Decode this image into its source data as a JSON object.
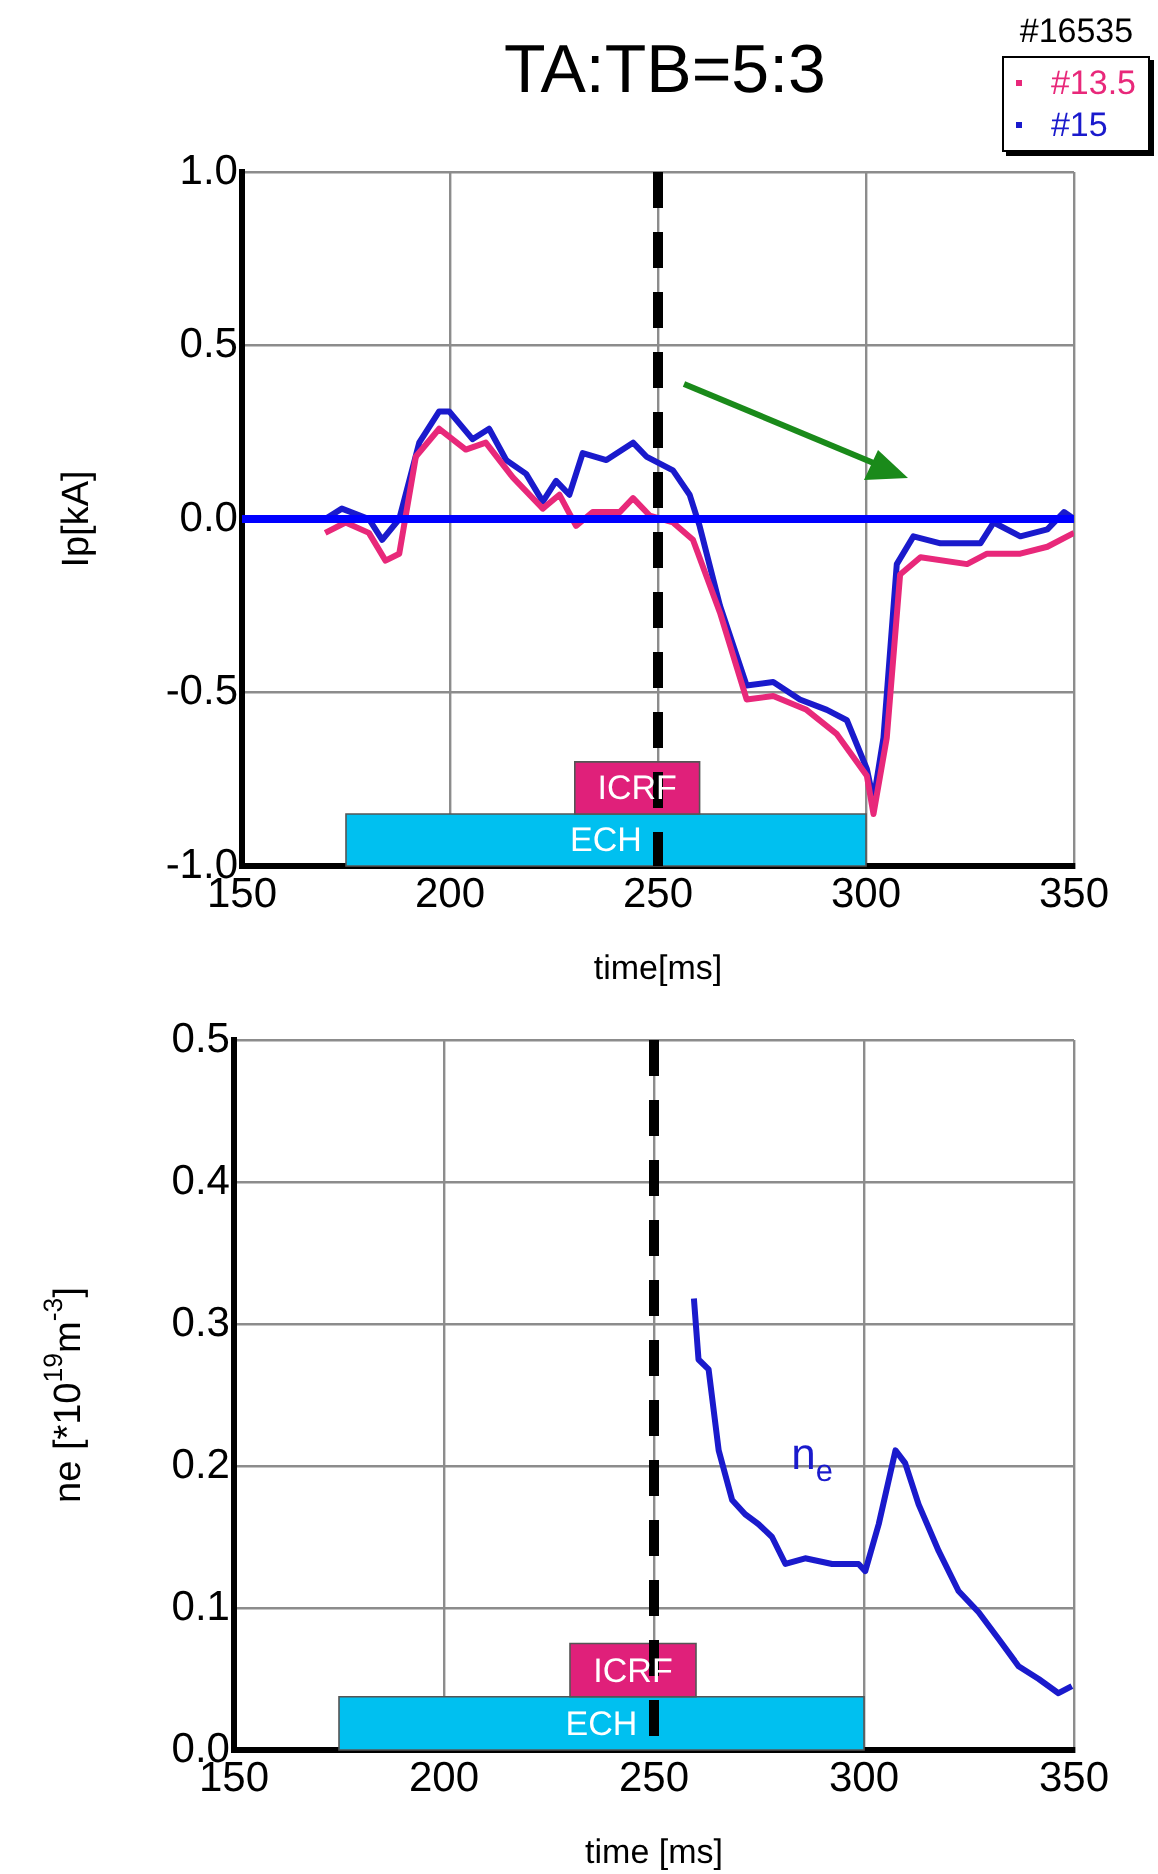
{
  "chart_data": [
    {
      "type": "line",
      "title": "TA:TB=5:3",
      "xlabel": "time[ms]",
      "ylabel": "Ip[kA]",
      "legend_title": "#16535",
      "legend": "top right",
      "marker": "none",
      "grid": true,
      "xlim": [
        150,
        350
      ],
      "xticks": [
        150,
        200,
        250,
        300,
        350
      ],
      "ylim": [
        -1.0,
        1.0
      ],
      "yticks": [
        {
          "value": -1,
          "label": "-1.0"
        },
        {
          "value": -0.5,
          "label": "-0.5"
        },
        {
          "value": 0,
          "label": "0.0"
        },
        {
          "value": 0.5,
          "label": "0.5"
        },
        {
          "value": 1,
          "label": "1.0"
        }
      ],
      "series": [
        {
          "name": "#13.5",
          "color": "#e8287a",
          "x": [
            170,
            174.9,
            180.5,
            184.5,
            187.8,
            191.8,
            197.4,
            203.8,
            208.6,
            215.1,
            222.3,
            226.3,
            230.3,
            234.3,
            240.8,
            244,
            248,
            253.6,
            258.4,
            264.9,
            271.3,
            277.7,
            285.7,
            293,
            300.2,
            301.8,
            305,
            308.2,
            313.1,
            324.3,
            329.1,
            337.1,
            343.6,
            350
          ],
          "values": [
            -0.04,
            -0.01,
            -0.04,
            -0.12,
            -0.1,
            0.18,
            0.26,
            0.2,
            0.22,
            0.12,
            0.03,
            0.07,
            -0.02,
            0.02,
            0.02,
            0.06,
            0.01,
            -0.01,
            -0.06,
            -0.27,
            -0.52,
            -0.51,
            -0.55,
            -0.62,
            -0.74,
            -0.85,
            -0.63,
            -0.16,
            -0.11,
            -0.13,
            -0.1,
            -0.1,
            -0.08,
            -0.04
          ]
        },
        {
          "name": "#15",
          "color": "#1a1acc",
          "x": [
            170,
            174,
            180.5,
            183.7,
            187.8,
            192.6,
            197.4,
            199.8,
            205.4,
            209.4,
            213.5,
            218.3,
            222.3,
            225.5,
            228.7,
            231.9,
            237.6,
            244,
            247.2,
            253.6,
            257.6,
            260,
            264.9,
            271.3,
            277.7,
            284.1,
            290.6,
            295.4,
            300.2,
            301.8,
            304.2,
            307.4,
            311.4,
            317.9,
            327.5,
            330.7,
            337.1,
            343.6,
            347.6,
            350
          ],
          "values": [
            0,
            0.03,
            0,
            -0.06,
            0,
            0.22,
            0.31,
            0.31,
            0.23,
            0.26,
            0.17,
            0.13,
            0.05,
            0.11,
            0.07,
            0.19,
            0.17,
            0.22,
            0.18,
            0.14,
            0.07,
            -0.02,
            -0.25,
            -0.48,
            -0.47,
            -0.52,
            -0.55,
            -0.58,
            -0.72,
            -0.81,
            -0.63,
            -0.13,
            -0.05,
            -0.07,
            -0.07,
            -0.01,
            -0.05,
            -0.03,
            0.02,
            0
          ]
        }
      ],
      "ref_lines": [
        {
          "axis": "y",
          "value": 0,
          "color": "#0000ff"
        },
        {
          "axis": "x",
          "value": 250,
          "color": "#000000",
          "line_style": "dashed"
        }
      ],
      "bands": [
        {
          "axis": "x",
          "from": 175,
          "to": 300,
          "label": "ECH",
          "color": "#00c0f0"
        },
        {
          "axis": "x",
          "from": 230,
          "to": 260,
          "label": "ICRF",
          "color": "#e0207a"
        }
      ]
    },
    {
      "type": "line",
      "xlabel": "time [ms]",
      "ylabel": "ne [*10$^{19}$m$^{-3}$]",
      "marker": "none",
      "grid": true,
      "xlim": [
        150,
        350
      ],
      "xticks": [
        150,
        200,
        250,
        300,
        350
      ],
      "ylim": [
        0,
        0.5
      ],
      "yticks": [
        {
          "value": 0,
          "label": "0.0"
        },
        {
          "value": 0.1,
          "label": "0.1"
        },
        {
          "value": 0.2,
          "label": "0.2"
        },
        {
          "value": 0.3,
          "label": "0.3"
        },
        {
          "value": 0.4,
          "label": "0.4"
        },
        {
          "value": 0.5,
          "label": "0.5"
        }
      ],
      "series": [
        {
          "name": "n$_{e}$",
          "color": "#1a1acc",
          "x": [
            259.5,
            260.6,
            263,
            265.4,
            268.6,
            271.7,
            274.9,
            278.1,
            281.3,
            286,
            292.4,
            298.7,
            300.3,
            303.5,
            307.5,
            309.8,
            313,
            317.8,
            322.5,
            327.3,
            332.1,
            336.8,
            341.6,
            346.3,
            349.5
          ],
          "values": [
            0.318,
            0.275,
            0.268,
            0.211,
            0.176,
            0.166,
            0.159,
            0.15,
            0.131,
            0.135,
            0.131,
            0.131,
            0.126,
            0.159,
            0.211,
            0.202,
            0.173,
            0.14,
            0.112,
            0.097,
            0.078,
            0.059,
            0.05,
            0.04,
            0.045
          ]
        }
      ],
      "ref_lines": [
        {
          "axis": "x",
          "value": 250,
          "color": "#000000",
          "line_style": "dashed"
        }
      ],
      "bands": [
        {
          "axis": "x",
          "from": 175,
          "to": 300,
          "label": "ECH",
          "color": "#00c0f0"
        },
        {
          "axis": "x",
          "from": 230,
          "to": 260,
          "label": "ICRF",
          "color": "#e0207a"
        }
      ]
    }
  ]
}
